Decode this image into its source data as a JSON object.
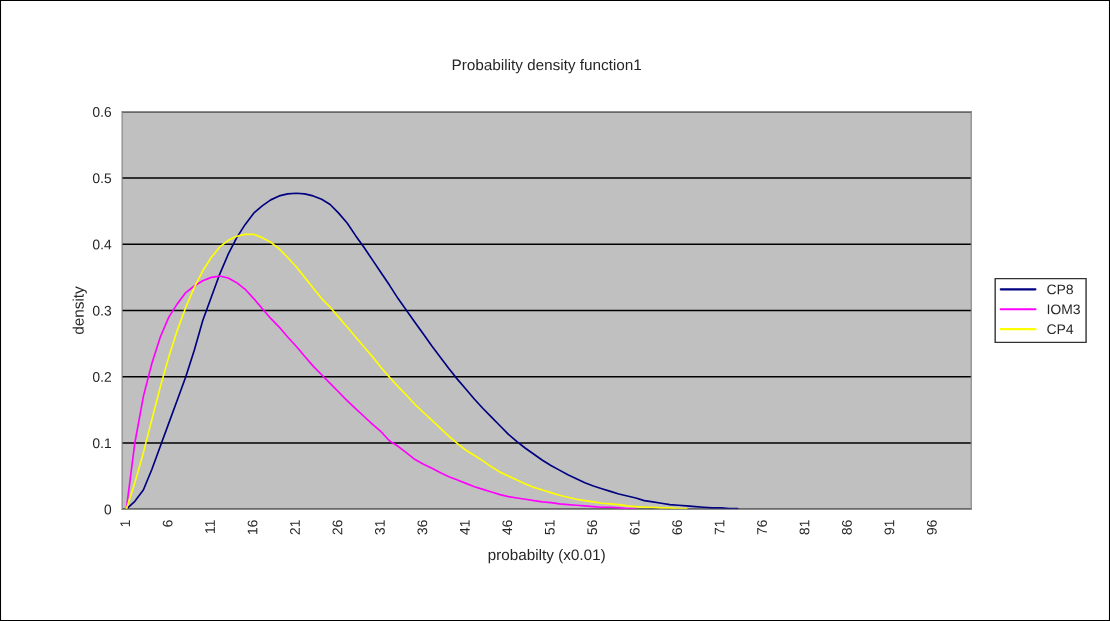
{
  "chart_data": {
    "type": "line",
    "title": "Probability density function1",
    "xlabel": "probabilty (x0.01)",
    "ylabel": "density",
    "categories": [
      "1",
      null,
      null,
      null,
      null,
      "6",
      null,
      null,
      null,
      null,
      "11",
      null,
      null,
      null,
      null,
      "16",
      null,
      null,
      null,
      null,
      "21",
      null,
      null,
      null,
      null,
      "26",
      null,
      null,
      null,
      null,
      "31",
      null,
      null,
      null,
      null,
      "36",
      null,
      null,
      null,
      null,
      "41",
      null,
      null,
      null,
      null,
      "46",
      null,
      null,
      null,
      null,
      "51",
      null,
      null,
      null,
      null,
      "56",
      null,
      null,
      null,
      null,
      "61",
      null,
      null,
      null,
      null,
      "66",
      null,
      null,
      null,
      null,
      "71",
      null,
      null,
      null,
      null,
      "76",
      null,
      null,
      null,
      null,
      "81",
      null,
      null,
      null,
      null,
      "86",
      null,
      null,
      null,
      null,
      "91",
      null,
      null,
      null,
      null,
      "96",
      null,
      null,
      null,
      null
    ],
    "series": [
      {
        "name": "CP8",
        "color": "#000080",
        "values": [
          0,
          0.012,
          0.029,
          0.06,
          0.095,
          0.13,
          0.165,
          0.2,
          0.24,
          0.285,
          0.32,
          0.355,
          0.385,
          0.41,
          0.43,
          0.447,
          0.458,
          0.467,
          0.473,
          0.476,
          0.477,
          0.476,
          0.473,
          0.468,
          0.46,
          0.447,
          0.432,
          0.413,
          0.395,
          0.376,
          0.357,
          0.338,
          0.318,
          0.3,
          0.282,
          0.264,
          0.246,
          0.229,
          0.212,
          0.196,
          0.181,
          0.166,
          0.152,
          0.139,
          0.126,
          0.113,
          0.102,
          0.092,
          0.083,
          0.074,
          0.066,
          0.059,
          0.052,
          0.046,
          0.04,
          0.035,
          0.031,
          0.027,
          0.023,
          0.02,
          0.017,
          0.013,
          0.011,
          0.009,
          0.007,
          0.006,
          0.005,
          0.004,
          0.003,
          0.002,
          0.002,
          0.001,
          0.001,
          null,
          null,
          null,
          null,
          null,
          null,
          null,
          null,
          null,
          null,
          null,
          null,
          null,
          null,
          null,
          null,
          null,
          null,
          null,
          null,
          null,
          null,
          null,
          null,
          null,
          null,
          null
        ]
      },
      {
        "name": "IOM3",
        "color": "#ff00ff",
        "values": [
          0,
          0.1,
          0.17,
          0.22,
          0.26,
          0.29,
          0.31,
          0.327,
          0.337,
          0.345,
          0.35,
          0.352,
          0.349,
          0.342,
          0.332,
          0.318,
          0.303,
          0.288,
          0.275,
          0.26,
          0.246,
          0.231,
          0.216,
          0.203,
          0.19,
          0.177,
          0.164,
          0.152,
          0.14,
          0.128,
          0.117,
          0.103,
          0.095,
          0.085,
          0.075,
          0.068,
          0.062,
          0.055,
          0.049,
          0.044,
          0.039,
          0.034,
          0.03,
          0.026,
          0.022,
          0.019,
          0.017,
          0.015,
          0.013,
          0.011,
          0.01,
          0.008,
          0.007,
          0.006,
          0.005,
          0.004,
          0.003,
          0.003,
          0.002,
          0.001,
          0.001,
          null,
          null,
          null,
          null,
          null,
          null,
          null,
          null,
          null,
          null,
          null,
          null,
          null,
          null,
          null,
          null,
          null,
          null,
          null,
          null,
          null,
          null,
          null,
          null,
          null,
          null,
          null,
          null,
          null,
          null,
          null,
          null,
          null,
          null,
          null,
          null,
          null,
          null,
          null
        ]
      },
      {
        "name": "CP4",
        "color": "#ffff00",
        "values": [
          0,
          0.04,
          0.085,
          0.135,
          0.185,
          0.23,
          0.27,
          0.305,
          0.335,
          0.36,
          0.38,
          0.396,
          0.406,
          0.412,
          0.415,
          0.415,
          0.41,
          0.403,
          0.393,
          0.38,
          0.366,
          0.35,
          0.334,
          0.318,
          0.305,
          0.29,
          0.275,
          0.26,
          0.245,
          0.23,
          0.214,
          0.199,
          0.185,
          0.172,
          0.158,
          0.146,
          0.134,
          0.122,
          0.11,
          0.099,
          0.089,
          0.081,
          0.073,
          0.064,
          0.056,
          0.05,
          0.044,
          0.038,
          0.033,
          0.029,
          0.025,
          0.021,
          0.018,
          0.015,
          0.013,
          0.011,
          0.009,
          0.008,
          0.007,
          0.005,
          0.004,
          0.003,
          0.003,
          0.002,
          0.002,
          0.001,
          0.001,
          null,
          null,
          null,
          null,
          null,
          null,
          null,
          null,
          null,
          null,
          null,
          null,
          null,
          null,
          null,
          null,
          null,
          null,
          null,
          null,
          null,
          null,
          null,
          null,
          null,
          null,
          null,
          null,
          null,
          null,
          null,
          null,
          null
        ]
      }
    ],
    "ylim": [
      0,
      0.6
    ],
    "yticks": [
      0,
      0.1,
      0.2,
      0.3,
      0.4,
      0.5,
      0.6
    ],
    "grid": "y",
    "legend": "right",
    "marker": "none",
    "line_style": "solid"
  }
}
